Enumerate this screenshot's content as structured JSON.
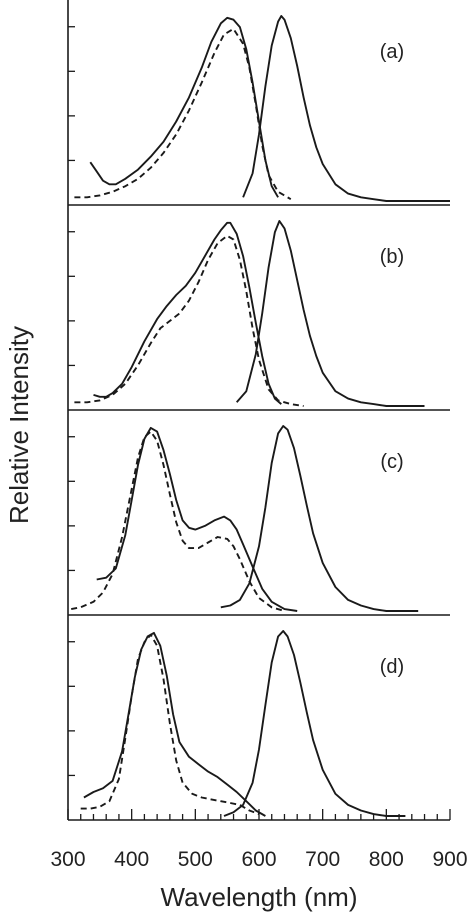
{
  "chart_data": {
    "type": "line",
    "xlabel": "Wavelength (nm)",
    "ylabel": "Relative Intensity",
    "xlim": [
      300,
      900
    ],
    "x_ticks": [
      "300",
      "400",
      "500",
      "600",
      "700",
      "800",
      "900"
    ],
    "ylim": [
      0,
      1
    ],
    "grid": false,
    "legend": "none",
    "line_color": "#1a1a1a",
    "panels": [
      {
        "label": "(a)",
        "series": [
          {
            "style": "solid",
            "x": [
              335,
              345,
              355,
              365,
              375,
              390,
              410,
              430,
              450,
              470,
              490,
              510,
              525,
              540,
              550,
              560,
              570,
              580,
              590,
              600,
              610,
              620,
              630
            ],
            "y": [
              0.21,
              0.16,
              0.11,
              0.09,
              0.09,
              0.12,
              0.17,
              0.24,
              0.32,
              0.43,
              0.56,
              0.72,
              0.86,
              0.96,
              0.99,
              0.98,
              0.94,
              0.82,
              0.64,
              0.43,
              0.22,
              0.08,
              0.02
            ]
          },
          {
            "style": "dashed",
            "x": [
              310,
              330,
              350,
              370,
              390,
              410,
              430,
              450,
              470,
              490,
              510,
              530,
              545,
              560,
              575,
              585,
              595,
              605,
              615,
              630,
              650
            ],
            "y": [
              0.02,
              0.02,
              0.03,
              0.05,
              0.08,
              0.12,
              0.18,
              0.26,
              0.36,
              0.49,
              0.64,
              0.8,
              0.9,
              0.93,
              0.85,
              0.72,
              0.52,
              0.3,
              0.14,
              0.05,
              0.01
            ]
          },
          {
            "style": "solid",
            "x": [
              575,
              590,
              600,
              610,
              620,
              630,
              635,
              640,
              650,
              660,
              670,
              680,
              690,
              700,
              720,
              740,
              760,
              780,
              800,
              830,
              870,
              900
            ],
            "y": [
              0.02,
              0.15,
              0.36,
              0.62,
              0.84,
              0.97,
              1.0,
              0.98,
              0.88,
              0.73,
              0.56,
              0.41,
              0.29,
              0.2,
              0.09,
              0.04,
              0.02,
              0.01,
              0.0,
              0.0,
              0.0,
              0.0
            ]
          }
        ]
      },
      {
        "label": "(b)",
        "series": [
          {
            "style": "solid",
            "x": [
              340,
              350,
              360,
              370,
              385,
              400,
              420,
              440,
              455,
              470,
              485,
              500,
              515,
              530,
              540,
              550,
              555,
              565,
              575,
              585,
              595,
              605,
              615,
              625,
              635
            ],
            "y": [
              0.06,
              0.05,
              0.05,
              0.07,
              0.12,
              0.21,
              0.35,
              0.47,
              0.54,
              0.6,
              0.65,
              0.72,
              0.81,
              0.9,
              0.95,
              0.99,
              0.99,
              0.93,
              0.81,
              0.64,
              0.45,
              0.27,
              0.12,
              0.04,
              0.01
            ]
          },
          {
            "style": "dashed",
            "x": [
              310,
              330,
              350,
              370,
              390,
              410,
              430,
              445,
              460,
              475,
              490,
              505,
              520,
              535,
              550,
              560,
              570,
              580,
              590,
              600,
              615,
              630,
              650,
              670
            ],
            "y": [
              0.02,
              0.02,
              0.03,
              0.06,
              0.12,
              0.22,
              0.34,
              0.42,
              0.46,
              0.5,
              0.57,
              0.67,
              0.79,
              0.88,
              0.92,
              0.9,
              0.79,
              0.62,
              0.42,
              0.25,
              0.09,
              0.03,
              0.01,
              0.0
            ]
          },
          {
            "style": "solid",
            "x": [
              565,
              580,
              595,
              605,
              615,
              625,
              632,
              640,
              650,
              660,
              670,
              680,
              690,
              700,
              720,
              740,
              760,
              780,
              800,
              830,
              860
            ],
            "y": [
              0.02,
              0.08,
              0.28,
              0.5,
              0.75,
              0.94,
              1.0,
              0.96,
              0.84,
              0.68,
              0.52,
              0.38,
              0.27,
              0.18,
              0.08,
              0.04,
              0.02,
              0.01,
              0.0,
              0.0,
              0.0
            ]
          }
        ]
      },
      {
        "label": "(c)",
        "series": [
          {
            "style": "solid",
            "x": [
              345,
              360,
              375,
              390,
              400,
              410,
              420,
              430,
              440,
              450,
              460,
              470,
              480,
              490,
              500,
              515,
              530,
              545,
              555,
              565,
              575,
              590,
              605,
              620,
              640,
              660
            ],
            "y": [
              0.17,
              0.18,
              0.23,
              0.41,
              0.6,
              0.79,
              0.93,
              0.99,
              0.97,
              0.87,
              0.74,
              0.6,
              0.49,
              0.45,
              0.44,
              0.46,
              0.49,
              0.51,
              0.49,
              0.44,
              0.36,
              0.24,
              0.12,
              0.05,
              0.01,
              0.0
            ]
          },
          {
            "style": "dashed",
            "x": [
              305,
              320,
              340,
              355,
              370,
              385,
              400,
              410,
              420,
              430,
              440,
              450,
              460,
              470,
              480,
              490,
              505,
              520,
              535,
              550,
              560,
              570,
              585,
              600,
              620,
              640
            ],
            "y": [
              0.01,
              0.02,
              0.05,
              0.1,
              0.2,
              0.4,
              0.66,
              0.83,
              0.94,
              0.97,
              0.92,
              0.79,
              0.63,
              0.48,
              0.38,
              0.34,
              0.34,
              0.37,
              0.4,
              0.39,
              0.35,
              0.28,
              0.16,
              0.07,
              0.02,
              0.0
            ]
          },
          {
            "style": "solid",
            "x": [
              540,
              555,
              570,
              585,
              600,
              610,
              620,
              630,
              638,
              645,
              655,
              665,
              675,
              685,
              700,
              720,
              740,
              760,
              780,
              800,
              820,
              850
            ],
            "y": [
              0.02,
              0.03,
              0.06,
              0.15,
              0.35,
              0.56,
              0.8,
              0.96,
              1.0,
              0.98,
              0.88,
              0.73,
              0.57,
              0.42,
              0.26,
              0.13,
              0.06,
              0.03,
              0.01,
              0.0,
              0.0,
              0.0
            ]
          }
        ]
      },
      {
        "label": "(d)",
        "series": [
          {
            "style": "solid",
            "x": [
              325,
              340,
              355,
              370,
              385,
              395,
              405,
              415,
              425,
              435,
              445,
              455,
              465,
              475,
              490,
              505,
              520,
              535,
              550,
              565,
              580,
              595,
              610
            ],
            "y": [
              0.1,
              0.13,
              0.15,
              0.19,
              0.35,
              0.55,
              0.75,
              0.9,
              0.97,
              0.99,
              0.92,
              0.76,
              0.55,
              0.4,
              0.32,
              0.28,
              0.24,
              0.21,
              0.17,
              0.13,
              0.08,
              0.03,
              0.0
            ]
          },
          {
            "style": "dashed",
            "x": [
              320,
              335,
              350,
              365,
              380,
              390,
              400,
              410,
              420,
              430,
              440,
              450,
              460,
              470,
              480,
              495,
              510,
              525,
              540,
              555,
              570,
              585,
              600
            ],
            "y": [
              0.04,
              0.04,
              0.05,
              0.08,
              0.2,
              0.42,
              0.65,
              0.85,
              0.94,
              0.98,
              0.92,
              0.74,
              0.5,
              0.3,
              0.18,
              0.12,
              0.1,
              0.09,
              0.08,
              0.07,
              0.06,
              0.03,
              0.01
            ]
          },
          {
            "style": "solid",
            "x": [
              545,
              560,
              575,
              590,
              600,
              610,
              620,
              630,
              638,
              645,
              655,
              665,
              675,
              685,
              700,
              720,
              740,
              760,
              780,
              800,
              830
            ],
            "y": [
              0.0,
              0.02,
              0.06,
              0.18,
              0.36,
              0.6,
              0.83,
              0.97,
              1.0,
              0.97,
              0.87,
              0.72,
              0.56,
              0.41,
              0.25,
              0.12,
              0.06,
              0.03,
              0.01,
              0.0,
              0.0
            ]
          }
        ]
      }
    ]
  }
}
